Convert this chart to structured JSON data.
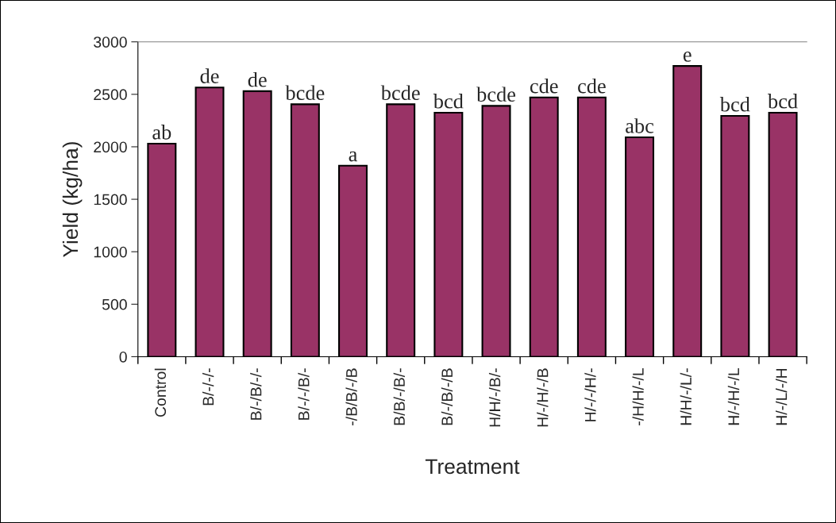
{
  "chart_data": {
    "type": "bar",
    "xlabel": "Treatment",
    "ylabel": "Yield (kg/ha)",
    "categories": [
      "Control",
      "B/-/-/-",
      "B/-/B/-/-",
      "B/-/-/B/-",
      "-/B/B/-/B",
      "B/B/-/B/-",
      "B/-/B/-/B",
      "H/H/-/B/-",
      "H/-/H/-/B",
      "H/-/-/H/-",
      "-/H/H/-/L",
      "H/H/-/L/-",
      "H/-/H/-/L",
      "H/-/L/-/H"
    ],
    "values": [
      2030,
      2565,
      2530,
      2405,
      1820,
      2405,
      2325,
      2390,
      2470,
      2470,
      2090,
      2770,
      2295,
      2325
    ],
    "color": "#993366",
    "ylim": [
      0,
      3000
    ],
    "yticks": [
      0,
      500,
      1000,
      1500,
      2000,
      2500,
      3000
    ],
    "grid": false,
    "legend": false,
    "annotations": [
      {
        "text": "ab",
        "x": "Control",
        "y": 2030
      },
      {
        "text": "de",
        "x": "B/-/-/-",
        "y": 2565
      },
      {
        "text": "de",
        "x": "B/-/B/-/-",
        "y": 2530
      },
      {
        "text": "bcde",
        "x": "B/-/-/B/-",
        "y": 2405
      },
      {
        "text": "a",
        "x": "-/B/B/-/B",
        "y": 1820
      },
      {
        "text": "bcde",
        "x": "B/B/-/B/-",
        "y": 2405
      },
      {
        "text": "bcd",
        "x": "B/-/B/-/B",
        "y": 2325
      },
      {
        "text": "bcde",
        "x": "H/H/-/B/-",
        "y": 2390
      },
      {
        "text": "cde",
        "x": "H/-/H/-/B",
        "y": 2470
      },
      {
        "text": "cde",
        "x": "H/-/-/H/-",
        "y": 2470
      },
      {
        "text": "abc",
        "x": "-/H/H/-/L",
        "y": 2090
      },
      {
        "text": "e",
        "x": "H/H/-/L/-",
        "y": 2770
      },
      {
        "text": "bcd",
        "x": "H/-/H/-/L",
        "y": 2295
      },
      {
        "text": "bcd",
        "x": "H/-/L/-/H",
        "y": 2325
      }
    ]
  }
}
